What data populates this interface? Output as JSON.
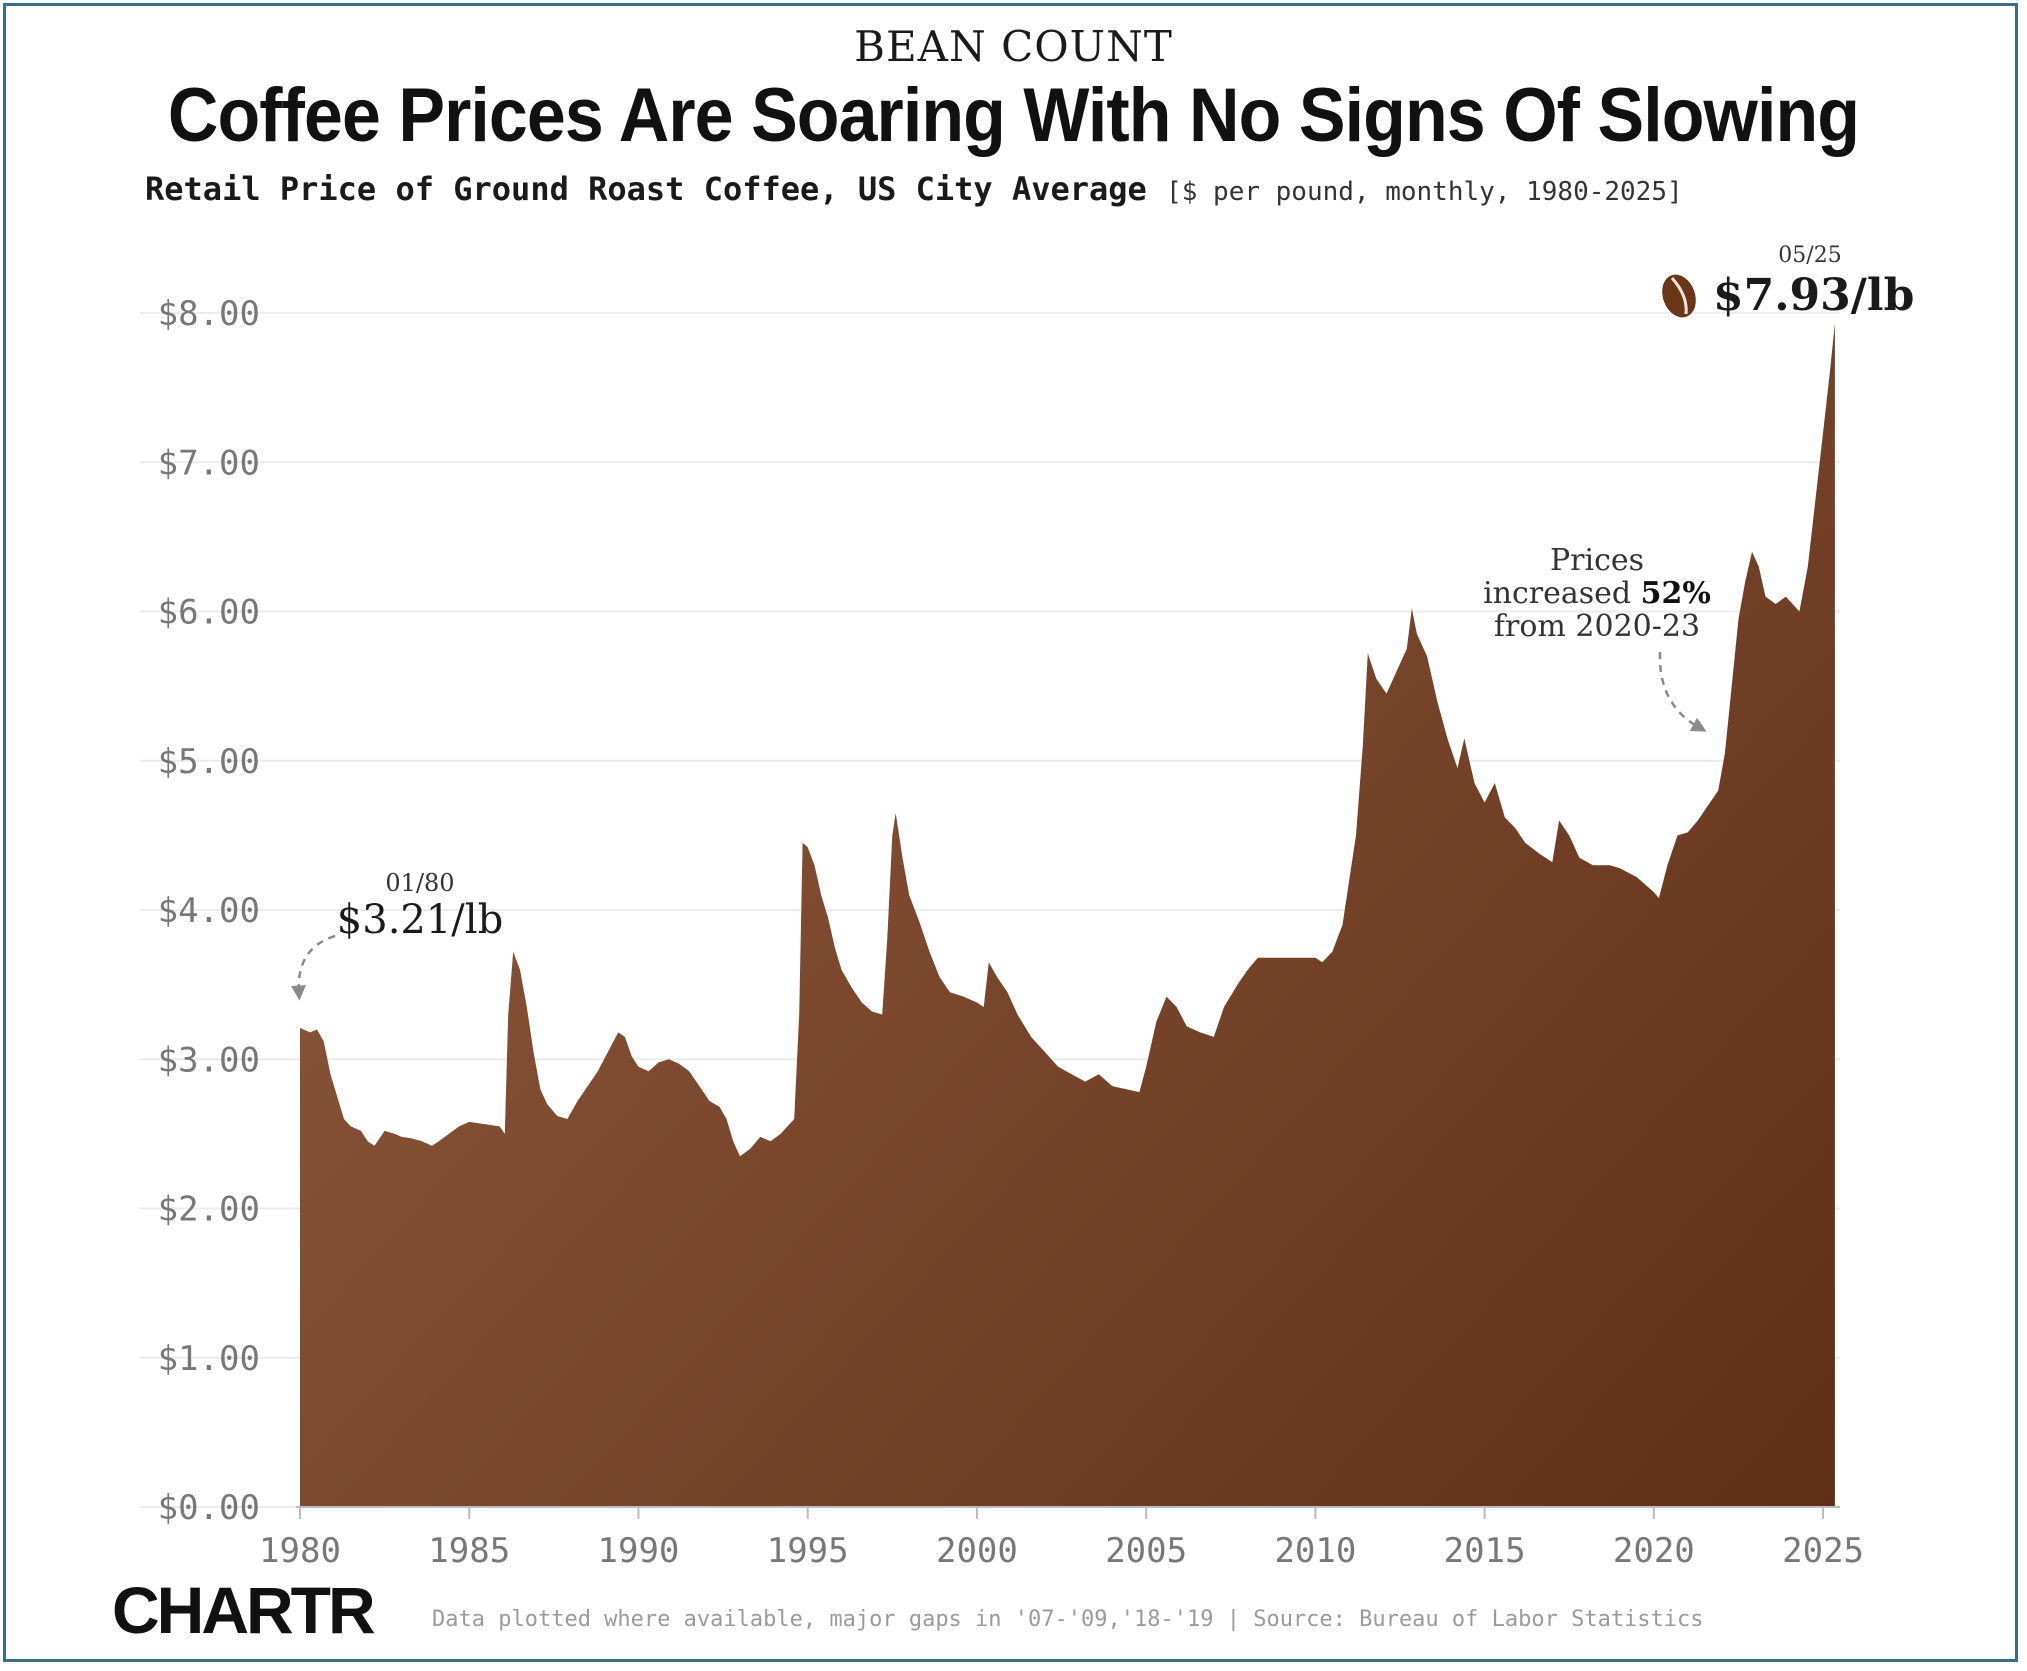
{
  "header": {
    "kicker": "BEAN COUNT",
    "title": "Coffee Prices Are Soaring With No Signs Of Slowing",
    "subtitle": "Retail Price of Ground Roast Coffee, US City Average",
    "subtitle_units": "[$ per pound, monthly, 1980-2025]"
  },
  "annotations": {
    "start_date": "01/80",
    "start_value": "$3.21/lb",
    "end_date": "05/25",
    "end_value": "$7.93/lb",
    "increase_line1": "Prices",
    "increase_line2_prefix": "increased ",
    "increase_pct": "52%",
    "increase_line3": "from 2020-23"
  },
  "footer": {
    "brand": "CHARTR",
    "note": "Data plotted where available, major gaps in '07-'09,'18-'19 | Source: Bureau of Labor Statistics"
  },
  "colors": {
    "fill_light": "#8c573b",
    "fill_dark": "#5e2f16",
    "grid": "#ececec",
    "axis_text": "#777777"
  },
  "chart_data": {
    "type": "area",
    "title": "Coffee Prices Are Soaring With No Signs Of Slowing",
    "xlabel": "",
    "ylabel": "",
    "xlim": [
      1980,
      2025.5
    ],
    "ylim": [
      0,
      8
    ],
    "grid": true,
    "x_ticks": [
      "1980",
      "1985",
      "1990",
      "1995",
      "2000",
      "2005",
      "2010",
      "2015",
      "2020",
      "2025"
    ],
    "y_ticks": [
      "$0.00",
      "$1.00",
      "$2.00",
      "$3.00",
      "$4.00",
      "$5.00",
      "$6.00",
      "$7.00",
      "$8.00"
    ],
    "series": [
      {
        "values": [
          [
            1980.0,
            3.21
          ],
          [
            1980.3,
            3.18
          ],
          [
            1980.5,
            3.2
          ],
          [
            1980.7,
            3.12
          ],
          [
            1980.9,
            2.9
          ],
          [
            1981.1,
            2.75
          ],
          [
            1981.3,
            2.6
          ],
          [
            1981.5,
            2.55
          ],
          [
            1981.8,
            2.52
          ],
          [
            1982.0,
            2.45
          ],
          [
            1982.2,
            2.42
          ],
          [
            1982.5,
            2.52
          ],
          [
            1982.8,
            2.5
          ],
          [
            1983.0,
            2.48
          ],
          [
            1983.3,
            2.47
          ],
          [
            1983.6,
            2.45
          ],
          [
            1983.9,
            2.42
          ],
          [
            1984.1,
            2.45
          ],
          [
            1984.4,
            2.5
          ],
          [
            1984.7,
            2.55
          ],
          [
            1985.0,
            2.58
          ],
          [
            1985.3,
            2.57
          ],
          [
            1985.6,
            2.56
          ],
          [
            1985.9,
            2.55
          ],
          [
            1986.05,
            2.5
          ],
          [
            1986.15,
            3.3
          ],
          [
            1986.3,
            3.72
          ],
          [
            1986.5,
            3.6
          ],
          [
            1986.7,
            3.35
          ],
          [
            1986.9,
            3.05
          ],
          [
            1987.1,
            2.8
          ],
          [
            1987.3,
            2.7
          ],
          [
            1987.6,
            2.62
          ],
          [
            1987.9,
            2.6
          ],
          [
            1988.2,
            2.72
          ],
          [
            1988.5,
            2.82
          ],
          [
            1988.8,
            2.92
          ],
          [
            1989.1,
            3.05
          ],
          [
            1989.4,
            3.18
          ],
          [
            1989.6,
            3.15
          ],
          [
            1989.8,
            3.02
          ],
          [
            1990.0,
            2.95
          ],
          [
            1990.3,
            2.92
          ],
          [
            1990.6,
            2.98
          ],
          [
            1990.9,
            3.0
          ],
          [
            1991.2,
            2.97
          ],
          [
            1991.5,
            2.92
          ],
          [
            1991.8,
            2.82
          ],
          [
            1992.1,
            2.72
          ],
          [
            1992.4,
            2.68
          ],
          [
            1992.6,
            2.6
          ],
          [
            1992.8,
            2.45
          ],
          [
            1993.0,
            2.35
          ],
          [
            1993.3,
            2.4
          ],
          [
            1993.6,
            2.48
          ],
          [
            1993.9,
            2.45
          ],
          [
            1994.2,
            2.5
          ],
          [
            1994.4,
            2.55
          ],
          [
            1994.6,
            2.6
          ],
          [
            1994.75,
            3.3
          ],
          [
            1994.85,
            4.45
          ],
          [
            1995.0,
            4.42
          ],
          [
            1995.2,
            4.3
          ],
          [
            1995.4,
            4.1
          ],
          [
            1995.6,
            3.95
          ],
          [
            1995.8,
            3.75
          ],
          [
            1996.0,
            3.6
          ],
          [
            1996.3,
            3.48
          ],
          [
            1996.6,
            3.38
          ],
          [
            1996.9,
            3.32
          ],
          [
            1997.2,
            3.3
          ],
          [
            1997.35,
            3.8
          ],
          [
            1997.5,
            4.5
          ],
          [
            1997.6,
            4.65
          ],
          [
            1997.8,
            4.35
          ],
          [
            1998.0,
            4.1
          ],
          [
            1998.3,
            3.92
          ],
          [
            1998.6,
            3.72
          ],
          [
            1998.9,
            3.55
          ],
          [
            1999.2,
            3.45
          ],
          [
            1999.6,
            3.42
          ],
          [
            2000.0,
            3.38
          ],
          [
            2000.2,
            3.35
          ],
          [
            2000.35,
            3.65
          ],
          [
            2000.6,
            3.55
          ],
          [
            2000.9,
            3.45
          ],
          [
            2001.2,
            3.3
          ],
          [
            2001.6,
            3.15
          ],
          [
            2002.0,
            3.05
          ],
          [
            2002.4,
            2.95
          ],
          [
            2002.8,
            2.9
          ],
          [
            2003.2,
            2.85
          ],
          [
            2003.6,
            2.9
          ],
          [
            2004.0,
            2.82
          ],
          [
            2004.4,
            2.8
          ],
          [
            2004.8,
            2.78
          ],
          [
            2005.0,
            2.95
          ],
          [
            2005.3,
            3.25
          ],
          [
            2005.6,
            3.42
          ],
          [
            2005.9,
            3.35
          ],
          [
            2006.2,
            3.22
          ],
          [
            2006.6,
            3.18
          ],
          [
            2007.0,
            3.15
          ],
          [
            2007.3,
            3.35
          ],
          [
            2007.7,
            3.5
          ],
          [
            2008.0,
            3.6
          ],
          [
            2008.3,
            3.68
          ],
          [
            2009.0,
            3.68
          ],
          [
            2009.6,
            3.68
          ],
          [
            2010.0,
            3.68
          ],
          [
            2010.2,
            3.65
          ],
          [
            2010.5,
            3.72
          ],
          [
            2010.8,
            3.9
          ],
          [
            2011.0,
            4.2
          ],
          [
            2011.2,
            4.5
          ],
          [
            2011.4,
            5.1
          ],
          [
            2011.55,
            5.72
          ],
          [
            2011.8,
            5.55
          ],
          [
            2012.1,
            5.45
          ],
          [
            2012.4,
            5.6
          ],
          [
            2012.7,
            5.75
          ],
          [
            2012.85,
            6.02
          ],
          [
            2013.0,
            5.85
          ],
          [
            2013.3,
            5.7
          ],
          [
            2013.6,
            5.4
          ],
          [
            2013.9,
            5.15
          ],
          [
            2014.2,
            4.95
          ],
          [
            2014.4,
            5.15
          ],
          [
            2014.7,
            4.85
          ],
          [
            2015.0,
            4.72
          ],
          [
            2015.3,
            4.85
          ],
          [
            2015.6,
            4.62
          ],
          [
            2015.9,
            4.55
          ],
          [
            2016.2,
            4.45
          ],
          [
            2016.6,
            4.38
          ],
          [
            2017.0,
            4.32
          ],
          [
            2017.2,
            4.6
          ],
          [
            2017.5,
            4.5
          ],
          [
            2017.8,
            4.35
          ],
          [
            2018.2,
            4.3
          ],
          [
            2018.7,
            4.3
          ],
          [
            2019.0,
            4.28
          ],
          [
            2019.5,
            4.22
          ],
          [
            2020.0,
            4.12
          ],
          [
            2020.15,
            4.08
          ],
          [
            2020.4,
            4.3
          ],
          [
            2020.7,
            4.5
          ],
          [
            2021.0,
            4.52
          ],
          [
            2021.3,
            4.6
          ],
          [
            2021.6,
            4.7
          ],
          [
            2021.9,
            4.8
          ],
          [
            2022.1,
            5.05
          ],
          [
            2022.3,
            5.5
          ],
          [
            2022.5,
            5.95
          ],
          [
            2022.7,
            6.2
          ],
          [
            2022.9,
            6.4
          ],
          [
            2023.1,
            6.3
          ],
          [
            2023.3,
            6.1
          ],
          [
            2023.6,
            6.05
          ],
          [
            2023.9,
            6.1
          ],
          [
            2024.1,
            6.05
          ],
          [
            2024.3,
            6.0
          ],
          [
            2024.55,
            6.3
          ],
          [
            2024.8,
            6.8
          ],
          [
            2025.0,
            7.2
          ],
          [
            2025.2,
            7.6
          ],
          [
            2025.35,
            7.93
          ]
        ]
      }
    ]
  }
}
